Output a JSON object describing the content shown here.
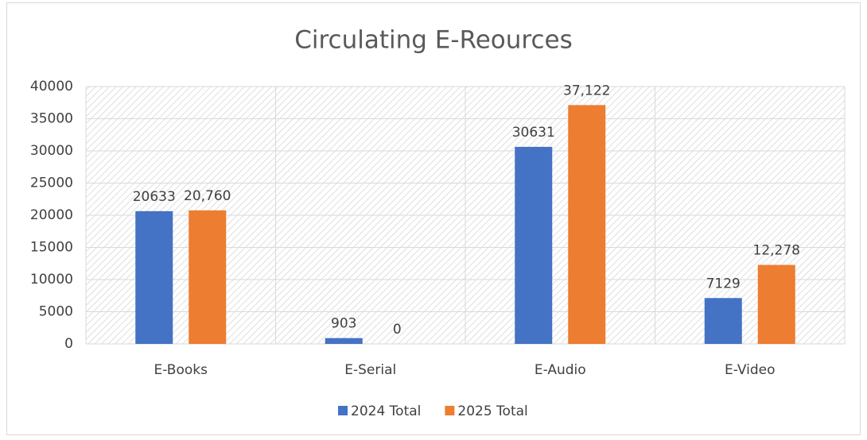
{
  "chart_data": {
    "type": "bar",
    "title": "Circulating E-Reources",
    "categories": [
      "E-Books",
      "E-Serial",
      "E-Audio",
      "E-Video"
    ],
    "series": [
      {
        "name": "2024 Total",
        "color": "#4472c4",
        "values": [
          20633,
          903,
          30631,
          7129
        ]
      },
      {
        "name": "2025 Total",
        "color": "#ed7d31",
        "values": [
          20760,
          0,
          37122,
          12278
        ],
        "value_labels": [
          "20,760",
          "0",
          "37,122",
          "12,278"
        ]
      }
    ],
    "ylim": [
      0,
      40000
    ],
    "yticks": [
      0,
      5000,
      10000,
      15000,
      20000,
      25000,
      30000,
      35000,
      40000
    ],
    "grid": true,
    "legend": "bottom"
  }
}
